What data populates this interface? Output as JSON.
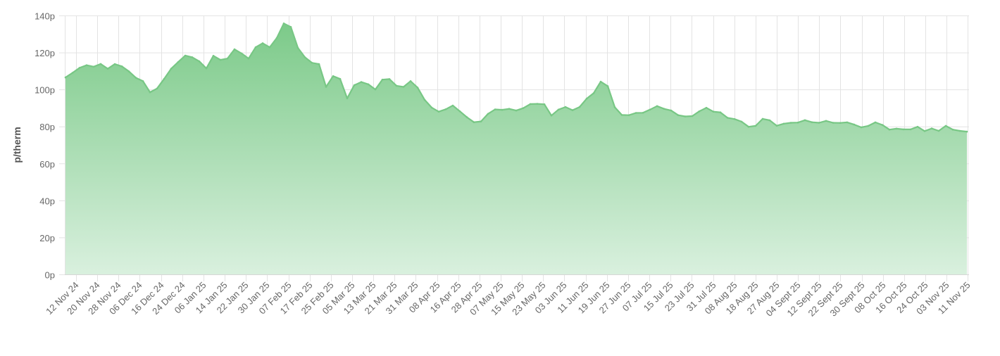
{
  "chart_data": {
    "type": "area",
    "title": "",
    "xlabel": "",
    "ylabel": "p/therm",
    "ylim": [
      0,
      140
    ],
    "y_ticks": [
      "0p",
      "20p",
      "40p",
      "60p",
      "80p",
      "100p",
      "120p",
      "140p"
    ],
    "y_tick_values": [
      0,
      20,
      40,
      60,
      80,
      100,
      120,
      140
    ],
    "x_tick_labels": [
      "12 Nov 24",
      "20 Nov 24",
      "28 Nov 24",
      "06 Dec 24",
      "16 Dec 24",
      "24 Dec 24",
      "06 Jan 25",
      "14 Jan 25",
      "22 Jan 25",
      "30 Jan 25",
      "07 Feb 25",
      "17 Feb 25",
      "25 Feb 25",
      "05 Mar 25",
      "13 Mar 25",
      "21 Mar 25",
      "31 Mar 25",
      "08 Apr 25",
      "16 Apr 25",
      "28 Apr 25",
      "07 May 25",
      "15 May 25",
      "23 May 25",
      "03 Jun 25",
      "11 Jun 25",
      "19 Jun 25",
      "27 Jun 25",
      "07 Jul 25",
      "15 Jul 25",
      "23 Jul 25",
      "31 Jul 25",
      "08 Aug 25",
      "18 Aug 25",
      "27 Aug 25",
      "04 Sept 25",
      "12 Sept 25",
      "22 Sept 25",
      "30 Sept 25",
      "08 Oct 25",
      "16 Oct 25",
      "24 Oct 25",
      "03 Nov 25",
      "11 Nov 25"
    ],
    "grid": true,
    "legend": "none",
    "colors": {
      "line": "#78c785",
      "fill_top": "#7cca89",
      "fill_bottom": "#d9f0de",
      "grid": "#e3e3e3"
    },
    "values": [
      106.5,
      109,
      111.7,
      113.1,
      112.3,
      113.8,
      111.2,
      113.7,
      112.5,
      109.8,
      106.3,
      104.5,
      98.5,
      100.5,
      105.7,
      111.2,
      114.8,
      118.3,
      117.4,
      115.2,
      111.4,
      118.2,
      116,
      116.7,
      121.7,
      119.5,
      116.7,
      122.8,
      125,
      122.8,
      127.8,
      135.7,
      133.8,
      122.5,
      117.4,
      114.4,
      113.7,
      101.4,
      107.2,
      105.7,
      95.2,
      102.3,
      104,
      102.8,
      100,
      105.3,
      105.6,
      102,
      101.4,
      104.5,
      101,
      94.4,
      90.2,
      88,
      89.3,
      91.3,
      88.2,
      85,
      82.3,
      82.7,
      86.8,
      89.2,
      89,
      89.5,
      88.6,
      89.9,
      92.1,
      92.2,
      92,
      85.9,
      89.1,
      90.5,
      88.8,
      90.5,
      95,
      98,
      104.2,
      101.8,
      90.4,
      86.2,
      86.1,
      87.3,
      87.4,
      89.1,
      91,
      89.5,
      88.6,
      86.1,
      85.4,
      85.6,
      88.2,
      90.1,
      88,
      87.6,
      84.7,
      84,
      82.6,
      79.8,
      80.3,
      84.1,
      83.3,
      80.4,
      81.5,
      82,
      82.1,
      83.4,
      82.3,
      82,
      83,
      82,
      81.9,
      82.2,
      81,
      79.5,
      80.3,
      82.2,
      80.8,
      78.3,
      78.8,
      78.4,
      78.4,
      79.8,
      77.5,
      78.9,
      77.6,
      80.3,
      78.3,
      77.6,
      77.2
    ]
  }
}
